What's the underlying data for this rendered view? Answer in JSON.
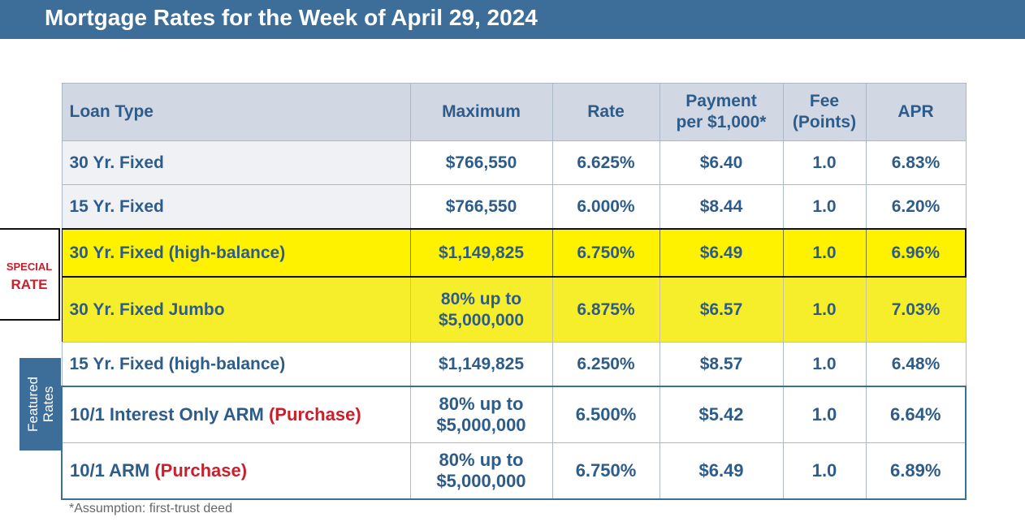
{
  "header": {
    "title": "Mortgage Rates for the Week of April 29, 2024"
  },
  "columns": {
    "loan_type": "Loan Type",
    "maximum": "Maximum",
    "rate": "Rate",
    "payment_1": "Payment",
    "payment_2": "per $1,000*",
    "fee_1": "Fee",
    "fee_2": "(Points)",
    "apr": "APR"
  },
  "rows": [
    {
      "loan": "30 Yr. Fixed",
      "max_1": "$766,550",
      "max_2": "",
      "rate": "6.625%",
      "payment": "$6.40",
      "fee": "1.0",
      "apr": "6.83%"
    },
    {
      "loan": "15 Yr. Fixed",
      "max_1": "$766,550",
      "max_2": "",
      "rate": "6.000%",
      "payment": "$8.44",
      "fee": "1.0",
      "apr": "6.20%"
    },
    {
      "loan": "30 Yr. Fixed (high-balance)",
      "max_1": "$1,149,825",
      "max_2": "",
      "rate": "6.750%",
      "payment": "$6.49",
      "fee": "1.0",
      "apr": "6.96%"
    },
    {
      "loan": "30 Yr. Fixed Jumbo",
      "max_1": "80% up to",
      "max_2": "$5,000,000",
      "rate": "6.875%",
      "payment": "$6.57",
      "fee": "1.0",
      "apr": "7.03%"
    },
    {
      "loan": "15 Yr. Fixed (high-balance)",
      "max_1": "$1,149,825",
      "max_2": "",
      "rate": "6.250%",
      "payment": "$8.57",
      "fee": "1.0",
      "apr": "6.48%"
    },
    {
      "loan": "10/1 Interest Only ARM",
      "loan_tag": "(Purchase)",
      "max_1": "80% up to",
      "max_2": "$5,000,000",
      "rate": "6.500%",
      "payment": "$5.42",
      "fee": "1.0",
      "apr": "6.64%"
    },
    {
      "loan": "10/1 ARM",
      "loan_tag": "(Purchase)",
      "max_1": "80% up to",
      "max_2": "$5,000,000",
      "rate": "6.750%",
      "payment": "$6.49",
      "fee": "1.0",
      "apr": "6.89%"
    }
  ],
  "special": {
    "line1": "SPECIAL",
    "line2": "RATE"
  },
  "featured": {
    "line1": "Featured",
    "line2": "Rates"
  },
  "footnote": "*Assumption: first-trust deed",
  "colors": {
    "banner": "#3d6e99",
    "text_blue": "#2e5c8a",
    "highlight_yellow": "#fef200",
    "header_fill": "#d1d8e4",
    "purchase_red": "#c8202c"
  }
}
